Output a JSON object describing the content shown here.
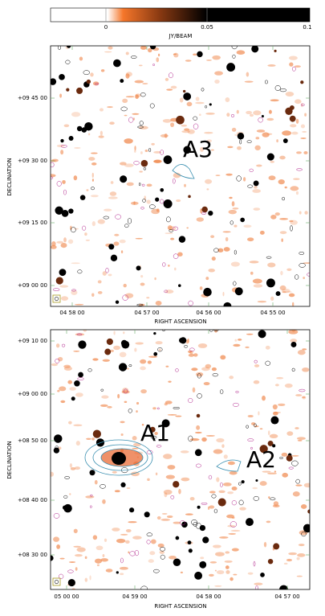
{
  "colorbar": {
    "label": "JY/BEAM",
    "ticks": [
      "0",
      "0.05",
      "0.1"
    ]
  },
  "panels": [
    {
      "y_label": "DECLINATION",
      "x_label": "RIGHT ASCENSION",
      "yticks": [
        "+09 45 00",
        "+09 30 00",
        "+09 15 00",
        "+09 00 00"
      ],
      "xticks": [
        "04 58 00",
        "04 57 00",
        "04 56 00",
        "04 55 00"
      ],
      "sources": [
        "A3"
      ]
    },
    {
      "y_label": "DECLINATION",
      "x_label": "RIGHT ASCENSION",
      "yticks": [
        "+09 10 00",
        "+09 00 00",
        "+08 50 00",
        "+08 40 00",
        "+08 30 00"
      ],
      "xticks": [
        "05 00 00",
        "04 59 00",
        "04 58 00",
        "04 57 00"
      ],
      "sources": [
        "A1",
        "A2"
      ]
    }
  ]
}
